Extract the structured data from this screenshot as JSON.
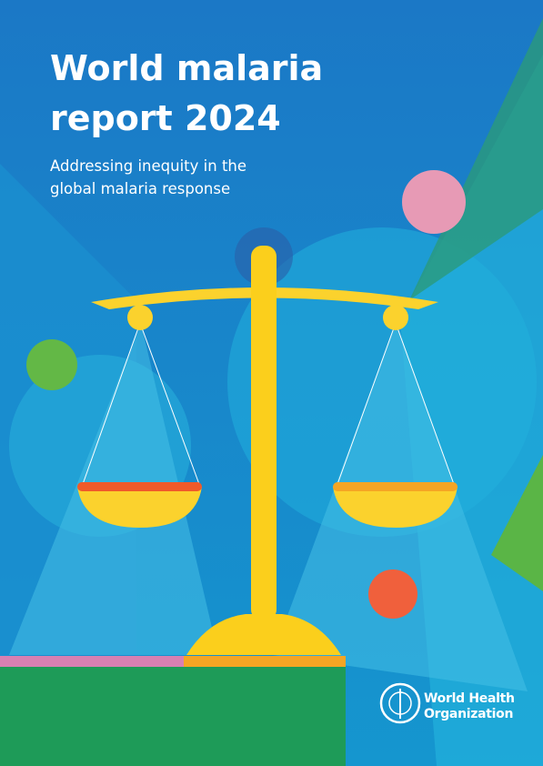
{
  "cover": {
    "title_lines": [
      "World malaria",
      "report 2024"
    ],
    "subtitle_lines": [
      "Addressing inequity in the",
      "global malaria response"
    ],
    "publisher_lines": [
      "World Health",
      "Organization"
    ]
  }
}
